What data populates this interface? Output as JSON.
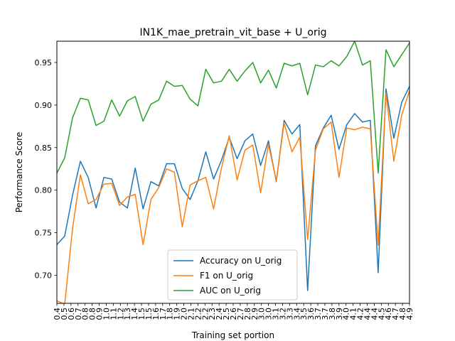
{
  "chart_data": {
    "type": "line",
    "title": "IN1K_mae_pretrain_vit_base + U_orig",
    "xlabel": "Training set portion",
    "ylabel": "Performance Score",
    "xlim": [
      0.4,
      4.9
    ],
    "ylim": [
      0.667,
      0.975
    ],
    "x_tick_labels": [
      "0.4",
      "0.5",
      "0.6",
      "0.7",
      "0.8",
      "0.8",
      "0.9",
      "1.0",
      "1.1",
      "1.2",
      "1.3",
      "1.4",
      "1.5",
      "1.5",
      "1.6",
      "1.7",
      "1.8",
      "1.9",
      "2.0",
      "2.1",
      "2.2",
      "2.2",
      "2.3",
      "2.4",
      "2.5",
      "2.6",
      "2.7",
      "2.8",
      "2.9",
      "3.0",
      "3.0",
      "3.1",
      "3.2",
      "3.3",
      "3.4",
      "3.5",
      "3.6",
      "3.7",
      "3.7",
      "3.8",
      "3.9",
      "4.0",
      "4.1",
      "4.2",
      "4.4",
      "4.4",
      "4.5",
      "4.6",
      "4.7",
      "4.8",
      "4.9"
    ],
    "y_ticks": [
      0.7,
      0.75,
      0.8,
      0.85,
      0.9,
      0.95
    ],
    "y_tick_labels": [
      "0.70",
      "0.75",
      "0.80",
      "0.85",
      "0.90",
      "0.95"
    ],
    "legend_position": "lower-center",
    "grid": false,
    "series": [
      {
        "name": "Accuracy on U_orig",
        "color": "#1f77b4",
        "values": [
          0.736,
          0.746,
          0.794,
          0.834,
          0.815,
          0.779,
          0.815,
          0.813,
          0.786,
          0.779,
          0.826,
          0.778,
          0.81,
          0.805,
          0.831,
          0.831,
          0.802,
          0.789,
          0.811,
          0.845,
          0.813,
          0.835,
          0.862,
          0.837,
          0.858,
          0.866,
          0.829,
          0.858,
          0.81,
          0.882,
          0.866,
          0.877,
          0.682,
          0.852,
          0.873,
          0.888,
          0.848,
          0.877,
          0.89,
          0.88,
          0.882,
          0.703,
          0.919,
          0.861,
          0.903,
          0.922
        ]
      },
      {
        "name": "F1 on U_orig",
        "color": "#ff7f0e",
        "values": [
          0.67,
          0.666,
          0.755,
          0.818,
          0.784,
          0.789,
          0.807,
          0.808,
          0.782,
          0.792,
          0.795,
          0.736,
          0.789,
          0.803,
          0.825,
          0.821,
          0.757,
          0.806,
          0.811,
          0.815,
          0.778,
          0.826,
          0.864,
          0.812,
          0.847,
          0.853,
          0.797,
          0.854,
          0.811,
          0.879,
          0.845,
          0.862,
          0.742,
          0.847,
          0.872,
          0.88,
          0.815,
          0.873,
          0.871,
          0.874,
          0.872,
          0.735,
          0.914,
          0.834,
          0.888,
          0.917
        ]
      },
      {
        "name": "AUC on U_orig",
        "color": "#2ca02c",
        "values": [
          0.82,
          0.838,
          0.885,
          0.908,
          0.906,
          0.876,
          0.881,
          0.906,
          0.887,
          0.905,
          0.91,
          0.881,
          0.901,
          0.906,
          0.928,
          0.922,
          0.923,
          0.907,
          0.899,
          0.942,
          0.926,
          0.928,
          0.942,
          0.928,
          0.94,
          0.95,
          0.926,
          0.941,
          0.92,
          0.949,
          0.946,
          0.949,
          0.912,
          0.947,
          0.945,
          0.952,
          0.946,
          0.957,
          0.975,
          0.947,
          0.952,
          0.82,
          0.965,
          0.945,
          0.959,
          0.973
        ]
      }
    ]
  }
}
